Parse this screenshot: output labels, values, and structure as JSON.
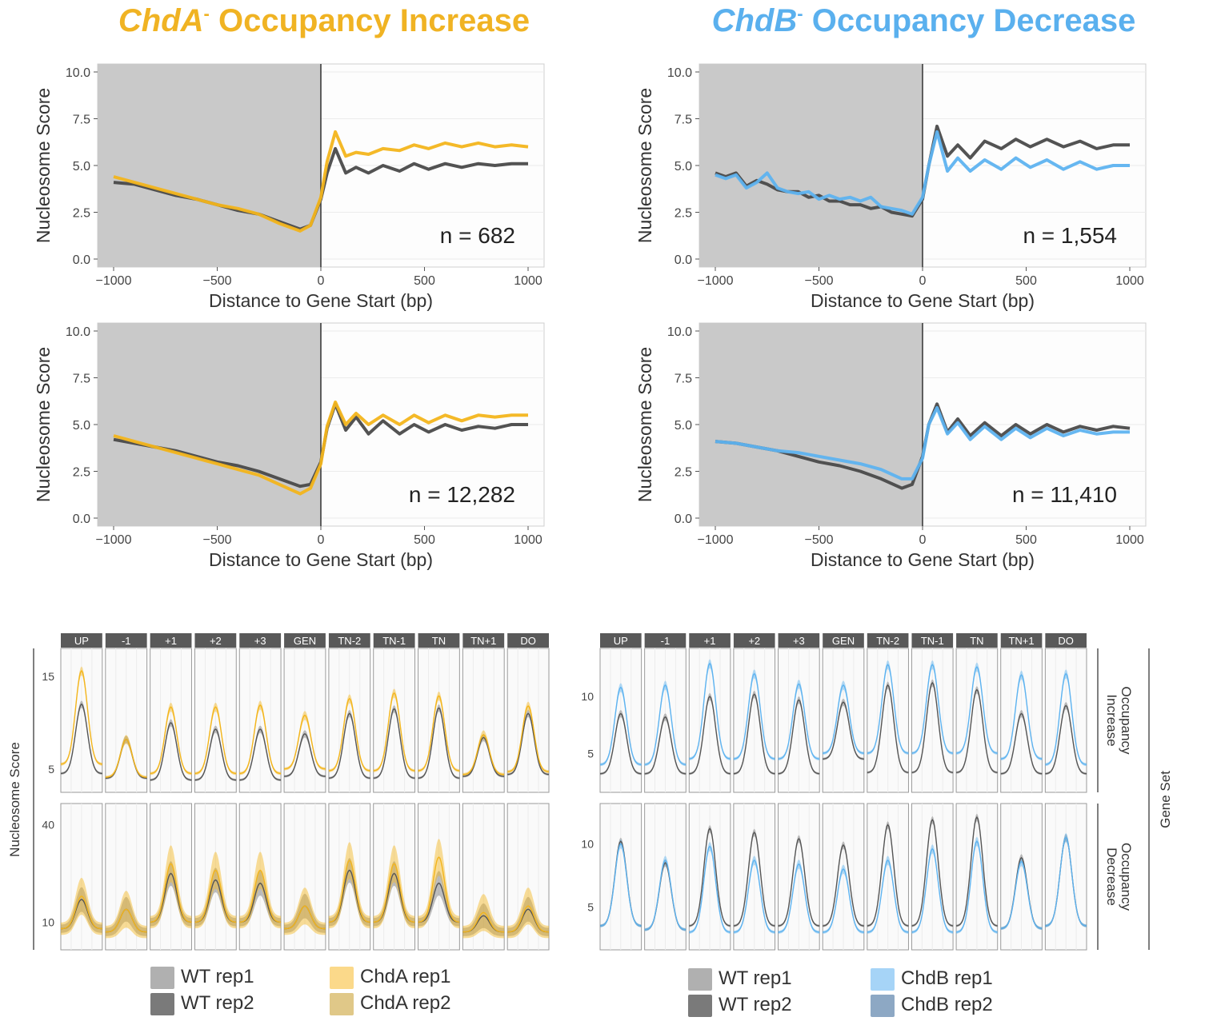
{
  "titles": {
    "a": {
      "gene": "ChdA",
      "sup": "-",
      "rest": "Occupancy Increase",
      "color": "#f0b323"
    },
    "b": {
      "gene": "ChdB",
      "sup": "-",
      "rest": "Occupancy Decrease",
      "color": "#5ab0ee"
    }
  },
  "colors": {
    "wt": "#4a4a4a",
    "chdA": "#f3b51c",
    "chdB": "#5eb3f0",
    "shade": "#c9c9c9",
    "strip": "#595959"
  },
  "chart_data": [
    {
      "type": "line",
      "id": "profile-a-top",
      "xlabel": "Distance to Gene Start (bp)",
      "ylabel": "Nucleosome Score",
      "xlim": [
        -1000,
        1000
      ],
      "ylim": [
        0,
        10
      ],
      "xticks": [
        "−1000",
        "−500",
        "0",
        "500",
        "1000"
      ],
      "yticks": [
        "0.0",
        "2.5",
        "5.0",
        "7.5",
        "10.0"
      ],
      "annotation": "n = 682",
      "shaded_region": [
        -1000,
        0
      ],
      "x": [
        -1000,
        -900,
        -800,
        -700,
        -600,
        -500,
        -400,
        -300,
        -200,
        -100,
        -50,
        0,
        30,
        70,
        120,
        170,
        230,
        300,
        380,
        450,
        520,
        600,
        680,
        760,
        840,
        920,
        1000
      ],
      "series": [
        {
          "name": "WT",
          "color_key": "wt",
          "values": [
            4.1,
            4.0,
            3.7,
            3.4,
            3.2,
            2.9,
            2.6,
            2.4,
            2.0,
            1.6,
            1.8,
            3.2,
            4.6,
            5.9,
            4.6,
            4.9,
            4.6,
            5.0,
            4.7,
            5.1,
            4.8,
            5.1,
            4.9,
            5.1,
            5.0,
            5.1,
            5.1
          ]
        },
        {
          "name": "ChdA",
          "color_key": "chdA",
          "values": [
            4.4,
            4.1,
            3.8,
            3.5,
            3.2,
            2.9,
            2.7,
            2.4,
            1.9,
            1.5,
            1.8,
            3.3,
            5.2,
            6.8,
            5.5,
            5.7,
            5.6,
            5.9,
            5.8,
            6.1,
            5.9,
            6.2,
            6.0,
            6.2,
            6.0,
            6.1,
            6.0
          ]
        }
      ]
    },
    {
      "type": "line",
      "id": "profile-b-top",
      "xlabel": "Distance to Gene Start (bp)",
      "ylabel": "Nucleosome Score",
      "xlim": [
        -1000,
        1000
      ],
      "ylim": [
        0,
        10
      ],
      "xticks": [
        "−1000",
        "−500",
        "0",
        "500",
        "1000"
      ],
      "yticks": [
        "0.0",
        "2.5",
        "5.0",
        "7.5",
        "10.0"
      ],
      "annotation": "n = 1,554",
      "shaded_region": [
        -1000,
        0
      ],
      "x": [
        -1000,
        -950,
        -900,
        -850,
        -800,
        -750,
        -700,
        -650,
        -600,
        -550,
        -500,
        -450,
        -400,
        -350,
        -300,
        -250,
        -200,
        -150,
        -100,
        -50,
        0,
        30,
        70,
        120,
        170,
        230,
        300,
        380,
        450,
        520,
        600,
        680,
        760,
        840,
        920,
        1000
      ],
      "series": [
        {
          "name": "WT",
          "color_key": "wt",
          "values": [
            4.6,
            4.4,
            4.6,
            3.9,
            4.2,
            4.0,
            3.7,
            3.6,
            3.6,
            3.3,
            3.4,
            3.1,
            3.1,
            2.9,
            2.9,
            2.7,
            2.8,
            2.5,
            2.4,
            2.3,
            3.2,
            5.0,
            7.1,
            5.5,
            6.1,
            5.4,
            6.3,
            5.9,
            6.4,
            6.0,
            6.4,
            6.0,
            6.3,
            5.9,
            6.1,
            6.1
          ]
        },
        {
          "name": "ChdB",
          "color_key": "chdB",
          "values": [
            4.5,
            4.3,
            4.5,
            3.8,
            4.1,
            4.6,
            3.8,
            3.6,
            3.5,
            3.6,
            3.2,
            3.4,
            3.2,
            3.3,
            3.1,
            3.3,
            2.8,
            2.7,
            2.6,
            2.4,
            3.3,
            5.0,
            6.8,
            4.7,
            5.4,
            4.7,
            5.3,
            4.8,
            5.4,
            4.9,
            5.3,
            4.8,
            5.2,
            4.8,
            5.0,
            5.0
          ]
        }
      ]
    },
    {
      "type": "line",
      "id": "profile-a-bottom",
      "xlabel": "Distance to Gene Start (bp)",
      "ylabel": "Nucleosome Score",
      "xlim": [
        -1000,
        1000
      ],
      "ylim": [
        0,
        10
      ],
      "xticks": [
        "−1000",
        "−500",
        "0",
        "500",
        "1000"
      ],
      "yticks": [
        "0.0",
        "2.5",
        "5.0",
        "7.5",
        "10.0"
      ],
      "annotation": "n = 12,282",
      "shaded_region": [
        -1000,
        0
      ],
      "x": [
        -1000,
        -900,
        -800,
        -700,
        -600,
        -500,
        -400,
        -300,
        -200,
        -100,
        -50,
        0,
        30,
        70,
        120,
        170,
        230,
        300,
        380,
        450,
        520,
        600,
        680,
        760,
        840,
        920,
        1000
      ],
      "series": [
        {
          "name": "WT",
          "color_key": "wt",
          "values": [
            4.2,
            4.0,
            3.8,
            3.6,
            3.3,
            3.0,
            2.8,
            2.5,
            2.1,
            1.7,
            1.8,
            3.0,
            4.8,
            6.1,
            4.7,
            5.4,
            4.5,
            5.2,
            4.5,
            5.0,
            4.6,
            5.0,
            4.7,
            4.9,
            4.8,
            5.0,
            5.0
          ]
        },
        {
          "name": "ChdA",
          "color_key": "chdA",
          "values": [
            4.4,
            4.1,
            3.8,
            3.5,
            3.2,
            2.9,
            2.6,
            2.3,
            1.8,
            1.3,
            1.6,
            2.9,
            4.9,
            6.2,
            5.0,
            5.6,
            5.0,
            5.5,
            5.0,
            5.5,
            5.1,
            5.5,
            5.2,
            5.5,
            5.4,
            5.5,
            5.5
          ]
        }
      ]
    },
    {
      "type": "line",
      "id": "profile-b-bottom",
      "xlabel": "Distance to Gene Start (bp)",
      "ylabel": "Nucleosome Score",
      "xlim": [
        -1000,
        1000
      ],
      "ylim": [
        0,
        10
      ],
      "xticks": [
        "−1000",
        "−500",
        "0",
        "500",
        "1000"
      ],
      "yticks": [
        "0.0",
        "2.5",
        "5.0",
        "7.5",
        "10.0"
      ],
      "annotation": "n = 11,410",
      "shaded_region": [
        -1000,
        0
      ],
      "x": [
        -1000,
        -900,
        -800,
        -700,
        -600,
        -500,
        -400,
        -300,
        -200,
        -100,
        -50,
        0,
        30,
        70,
        120,
        170,
        230,
        300,
        380,
        450,
        520,
        600,
        680,
        760,
        840,
        920,
        1000
      ],
      "series": [
        {
          "name": "WT",
          "color_key": "wt",
          "values": [
            4.1,
            4.0,
            3.8,
            3.6,
            3.3,
            3.0,
            2.8,
            2.5,
            2.1,
            1.6,
            1.8,
            3.3,
            5.0,
            6.1,
            4.6,
            5.3,
            4.4,
            5.1,
            4.4,
            5.0,
            4.5,
            5.0,
            4.6,
            4.9,
            4.7,
            4.9,
            4.8
          ]
        },
        {
          "name": "ChdB",
          "color_key": "chdB",
          "values": [
            4.1,
            4.0,
            3.8,
            3.6,
            3.5,
            3.3,
            3.1,
            2.9,
            2.6,
            2.1,
            2.1,
            3.2,
            5.0,
            5.9,
            4.5,
            5.1,
            4.2,
            4.9,
            4.2,
            4.8,
            4.3,
            4.8,
            4.4,
            4.7,
            4.5,
            4.6,
            4.6
          ]
        }
      ]
    },
    {
      "type": "line",
      "id": "facets-a",
      "ylabel": "Nucleosome Score",
      "strips": [
        "UP",
        "-1",
        "+1",
        "+2",
        "+3",
        "GEN",
        "TN-2",
        "TN-1",
        "TN",
        "TN+1",
        "DO"
      ],
      "rows": [
        {
          "label": "Occupancy Increase",
          "yticks": [
            5,
            15
          ],
          "ylim": [
            3,
            17.5
          ],
          "wt_peak": [
            12.0,
            8.2,
            10.0,
            9.3,
            9.3,
            8.8,
            11.0,
            11.5,
            11.6,
            8.4,
            11.0
          ],
          "mut_peak": [
            15.6,
            8.2,
            11.7,
            11.7,
            11.9,
            10.8,
            12.6,
            13.2,
            12.9,
            8.7,
            11.8
          ],
          "wt_base": [
            4.5,
            4.0,
            3.8,
            3.8,
            3.8,
            4.2,
            4.0,
            4.0,
            4.0,
            4.2,
            4.4
          ],
          "mut_base": [
            5.5,
            4.1,
            4.5,
            4.5,
            4.5,
            5.0,
            4.8,
            4.8,
            4.8,
            4.4,
            4.7
          ]
        },
        {
          "label": "Occupancy Decrease",
          "yticks": [
            10,
            40
          ],
          "ylim": [
            3,
            45
          ],
          "wt_peak": [
            17,
            14,
            25,
            23,
            22,
            15,
            26,
            25,
            22,
            12,
            14
          ],
          "mut_peak": [
            18,
            14,
            28,
            26,
            26,
            15,
            29,
            28,
            30,
            13,
            15
          ],
          "wt_base": [
            8,
            7,
            10,
            10,
            10,
            8,
            10,
            10,
            10,
            7,
            7
          ],
          "mut_base": [
            8,
            7,
            10,
            10,
            10,
            8,
            10,
            10,
            10,
            7,
            7
          ]
        }
      ],
      "legend": [
        {
          "label": "WT rep1",
          "color": "#b0b0b0"
        },
        {
          "label": "WT rep2",
          "color": "#7a7a7a"
        },
        {
          "label": "ChdA rep1",
          "color": "#fbd98a"
        },
        {
          "label": "ChdA rep2",
          "color": "#e0c888"
        }
      ]
    },
    {
      "type": "line",
      "id": "facets-b",
      "strips": [
        "UP",
        "-1",
        "+1",
        "+2",
        "+3",
        "GEN",
        "TN-2",
        "TN-1",
        "TN",
        "TN+1",
        "DO"
      ],
      "rows": [
        {
          "label": "Occupancy Increase",
          "yticks": [
            5,
            10
          ],
          "ylim": [
            2,
            13.8
          ],
          "wt_peak": [
            8.5,
            8.2,
            10.0,
            10.2,
            9.7,
            9.5,
            11.0,
            11.2,
            10.6,
            8.5,
            9.2
          ],
          "mut_peak": [
            10.8,
            11.0,
            12.9,
            12.0,
            11.1,
            11.0,
            12.8,
            12.8,
            12.6,
            11.9,
            12.0
          ],
          "wt_base": [
            3.2,
            3.2,
            3.2,
            3.2,
            3.2,
            4.5,
            3.3,
            3.3,
            3.3,
            3.2,
            3.2
          ],
          "mut_base": [
            4.0,
            4.0,
            4.5,
            4.5,
            4.5,
            5.0,
            5.0,
            5.0,
            5.0,
            4.5,
            4.0
          ]
        },
        {
          "label": "Occupancy Decrease",
          "yticks": [
            5,
            10
          ],
          "ylim": [
            2,
            12.8
          ],
          "wt_peak": [
            10.2,
            8.5,
            11.2,
            10.9,
            10.4,
            9.9,
            11.5,
            11.9,
            12.1,
            8.9,
            10.5
          ],
          "mut_peak": [
            10.0,
            8.7,
            9.8,
            8.7,
            8.4,
            8.0,
            8.7,
            9.6,
            10.2,
            8.6,
            10.5
          ],
          "wt_base": [
            3.5,
            3.2,
            3.5,
            3.5,
            3.5,
            3.5,
            3.5,
            3.5,
            3.5,
            3.3,
            3.5
          ],
          "mut_base": [
            3.5,
            3.2,
            3.0,
            3.0,
            3.0,
            3.0,
            3.0,
            3.0,
            3.0,
            3.3,
            3.5
          ]
        }
      ],
      "facet_label": "Gene Set",
      "legend": [
        {
          "label": "WT rep1",
          "color": "#b0b0b0"
        },
        {
          "label": "WT rep2",
          "color": "#7a7a7a"
        },
        {
          "label": "ChdB rep1",
          "color": "#a6d4f7"
        },
        {
          "label": "ChdB rep2",
          "color": "#8da8c4"
        }
      ]
    }
  ]
}
